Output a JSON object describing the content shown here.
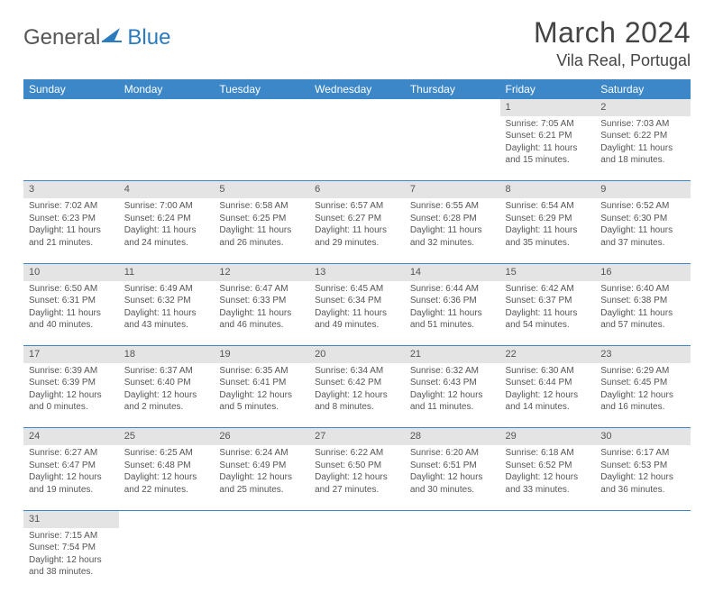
{
  "brand": {
    "part1": "General",
    "part2": "Blue",
    "icon_color": "#2b7bbf"
  },
  "title": "March 2024",
  "location": "Vila Real, Portugal",
  "colors": {
    "header_bg": "#3b87c8",
    "daynum_bg": "#e4e4e4",
    "row_border": "#3b87c8"
  },
  "day_headers": [
    "Sunday",
    "Monday",
    "Tuesday",
    "Wednesday",
    "Thursday",
    "Friday",
    "Saturday"
  ],
  "weeks": [
    [
      null,
      null,
      null,
      null,
      null,
      {
        "n": "1",
        "sr": "7:05 AM",
        "ss": "6:21 PM",
        "dl": "11 hours and 15 minutes."
      },
      {
        "n": "2",
        "sr": "7:03 AM",
        "ss": "6:22 PM",
        "dl": "11 hours and 18 minutes."
      }
    ],
    [
      {
        "n": "3",
        "sr": "7:02 AM",
        "ss": "6:23 PM",
        "dl": "11 hours and 21 minutes."
      },
      {
        "n": "4",
        "sr": "7:00 AM",
        "ss": "6:24 PM",
        "dl": "11 hours and 24 minutes."
      },
      {
        "n": "5",
        "sr": "6:58 AM",
        "ss": "6:25 PM",
        "dl": "11 hours and 26 minutes."
      },
      {
        "n": "6",
        "sr": "6:57 AM",
        "ss": "6:27 PM",
        "dl": "11 hours and 29 minutes."
      },
      {
        "n": "7",
        "sr": "6:55 AM",
        "ss": "6:28 PM",
        "dl": "11 hours and 32 minutes."
      },
      {
        "n": "8",
        "sr": "6:54 AM",
        "ss": "6:29 PM",
        "dl": "11 hours and 35 minutes."
      },
      {
        "n": "9",
        "sr": "6:52 AM",
        "ss": "6:30 PM",
        "dl": "11 hours and 37 minutes."
      }
    ],
    [
      {
        "n": "10",
        "sr": "6:50 AM",
        "ss": "6:31 PM",
        "dl": "11 hours and 40 minutes."
      },
      {
        "n": "11",
        "sr": "6:49 AM",
        "ss": "6:32 PM",
        "dl": "11 hours and 43 minutes."
      },
      {
        "n": "12",
        "sr": "6:47 AM",
        "ss": "6:33 PM",
        "dl": "11 hours and 46 minutes."
      },
      {
        "n": "13",
        "sr": "6:45 AM",
        "ss": "6:34 PM",
        "dl": "11 hours and 49 minutes."
      },
      {
        "n": "14",
        "sr": "6:44 AM",
        "ss": "6:36 PM",
        "dl": "11 hours and 51 minutes."
      },
      {
        "n": "15",
        "sr": "6:42 AM",
        "ss": "6:37 PM",
        "dl": "11 hours and 54 minutes."
      },
      {
        "n": "16",
        "sr": "6:40 AM",
        "ss": "6:38 PM",
        "dl": "11 hours and 57 minutes."
      }
    ],
    [
      {
        "n": "17",
        "sr": "6:39 AM",
        "ss": "6:39 PM",
        "dl": "12 hours and 0 minutes."
      },
      {
        "n": "18",
        "sr": "6:37 AM",
        "ss": "6:40 PM",
        "dl": "12 hours and 2 minutes."
      },
      {
        "n": "19",
        "sr": "6:35 AM",
        "ss": "6:41 PM",
        "dl": "12 hours and 5 minutes."
      },
      {
        "n": "20",
        "sr": "6:34 AM",
        "ss": "6:42 PM",
        "dl": "12 hours and 8 minutes."
      },
      {
        "n": "21",
        "sr": "6:32 AM",
        "ss": "6:43 PM",
        "dl": "12 hours and 11 minutes."
      },
      {
        "n": "22",
        "sr": "6:30 AM",
        "ss": "6:44 PM",
        "dl": "12 hours and 14 minutes."
      },
      {
        "n": "23",
        "sr": "6:29 AM",
        "ss": "6:45 PM",
        "dl": "12 hours and 16 minutes."
      }
    ],
    [
      {
        "n": "24",
        "sr": "6:27 AM",
        "ss": "6:47 PM",
        "dl": "12 hours and 19 minutes."
      },
      {
        "n": "25",
        "sr": "6:25 AM",
        "ss": "6:48 PM",
        "dl": "12 hours and 22 minutes."
      },
      {
        "n": "26",
        "sr": "6:24 AM",
        "ss": "6:49 PM",
        "dl": "12 hours and 25 minutes."
      },
      {
        "n": "27",
        "sr": "6:22 AM",
        "ss": "6:50 PM",
        "dl": "12 hours and 27 minutes."
      },
      {
        "n": "28",
        "sr": "6:20 AM",
        "ss": "6:51 PM",
        "dl": "12 hours and 30 minutes."
      },
      {
        "n": "29",
        "sr": "6:18 AM",
        "ss": "6:52 PM",
        "dl": "12 hours and 33 minutes."
      },
      {
        "n": "30",
        "sr": "6:17 AM",
        "ss": "6:53 PM",
        "dl": "12 hours and 36 minutes."
      }
    ],
    [
      {
        "n": "31",
        "sr": "7:15 AM",
        "ss": "7:54 PM",
        "dl": "12 hours and 38 minutes."
      },
      null,
      null,
      null,
      null,
      null,
      null
    ]
  ],
  "labels": {
    "sunrise": "Sunrise:",
    "sunset": "Sunset:",
    "daylight": "Daylight:"
  }
}
